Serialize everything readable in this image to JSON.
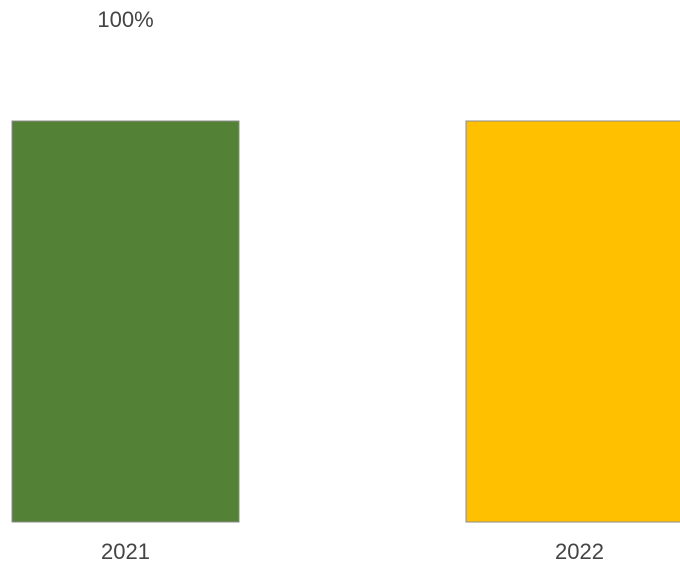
{
  "chart_data": {
    "type": "bar",
    "categories": [
      "2021",
      "2022"
    ],
    "values": [
      100,
      100
    ],
    "value_labels": [
      "100%",
      ""
    ],
    "bar_colors": [
      "#538135",
      "#ffc000"
    ],
    "ylim": [
      0,
      100
    ],
    "title": "",
    "xlabel": "",
    "ylabel": "",
    "grid": false
  }
}
